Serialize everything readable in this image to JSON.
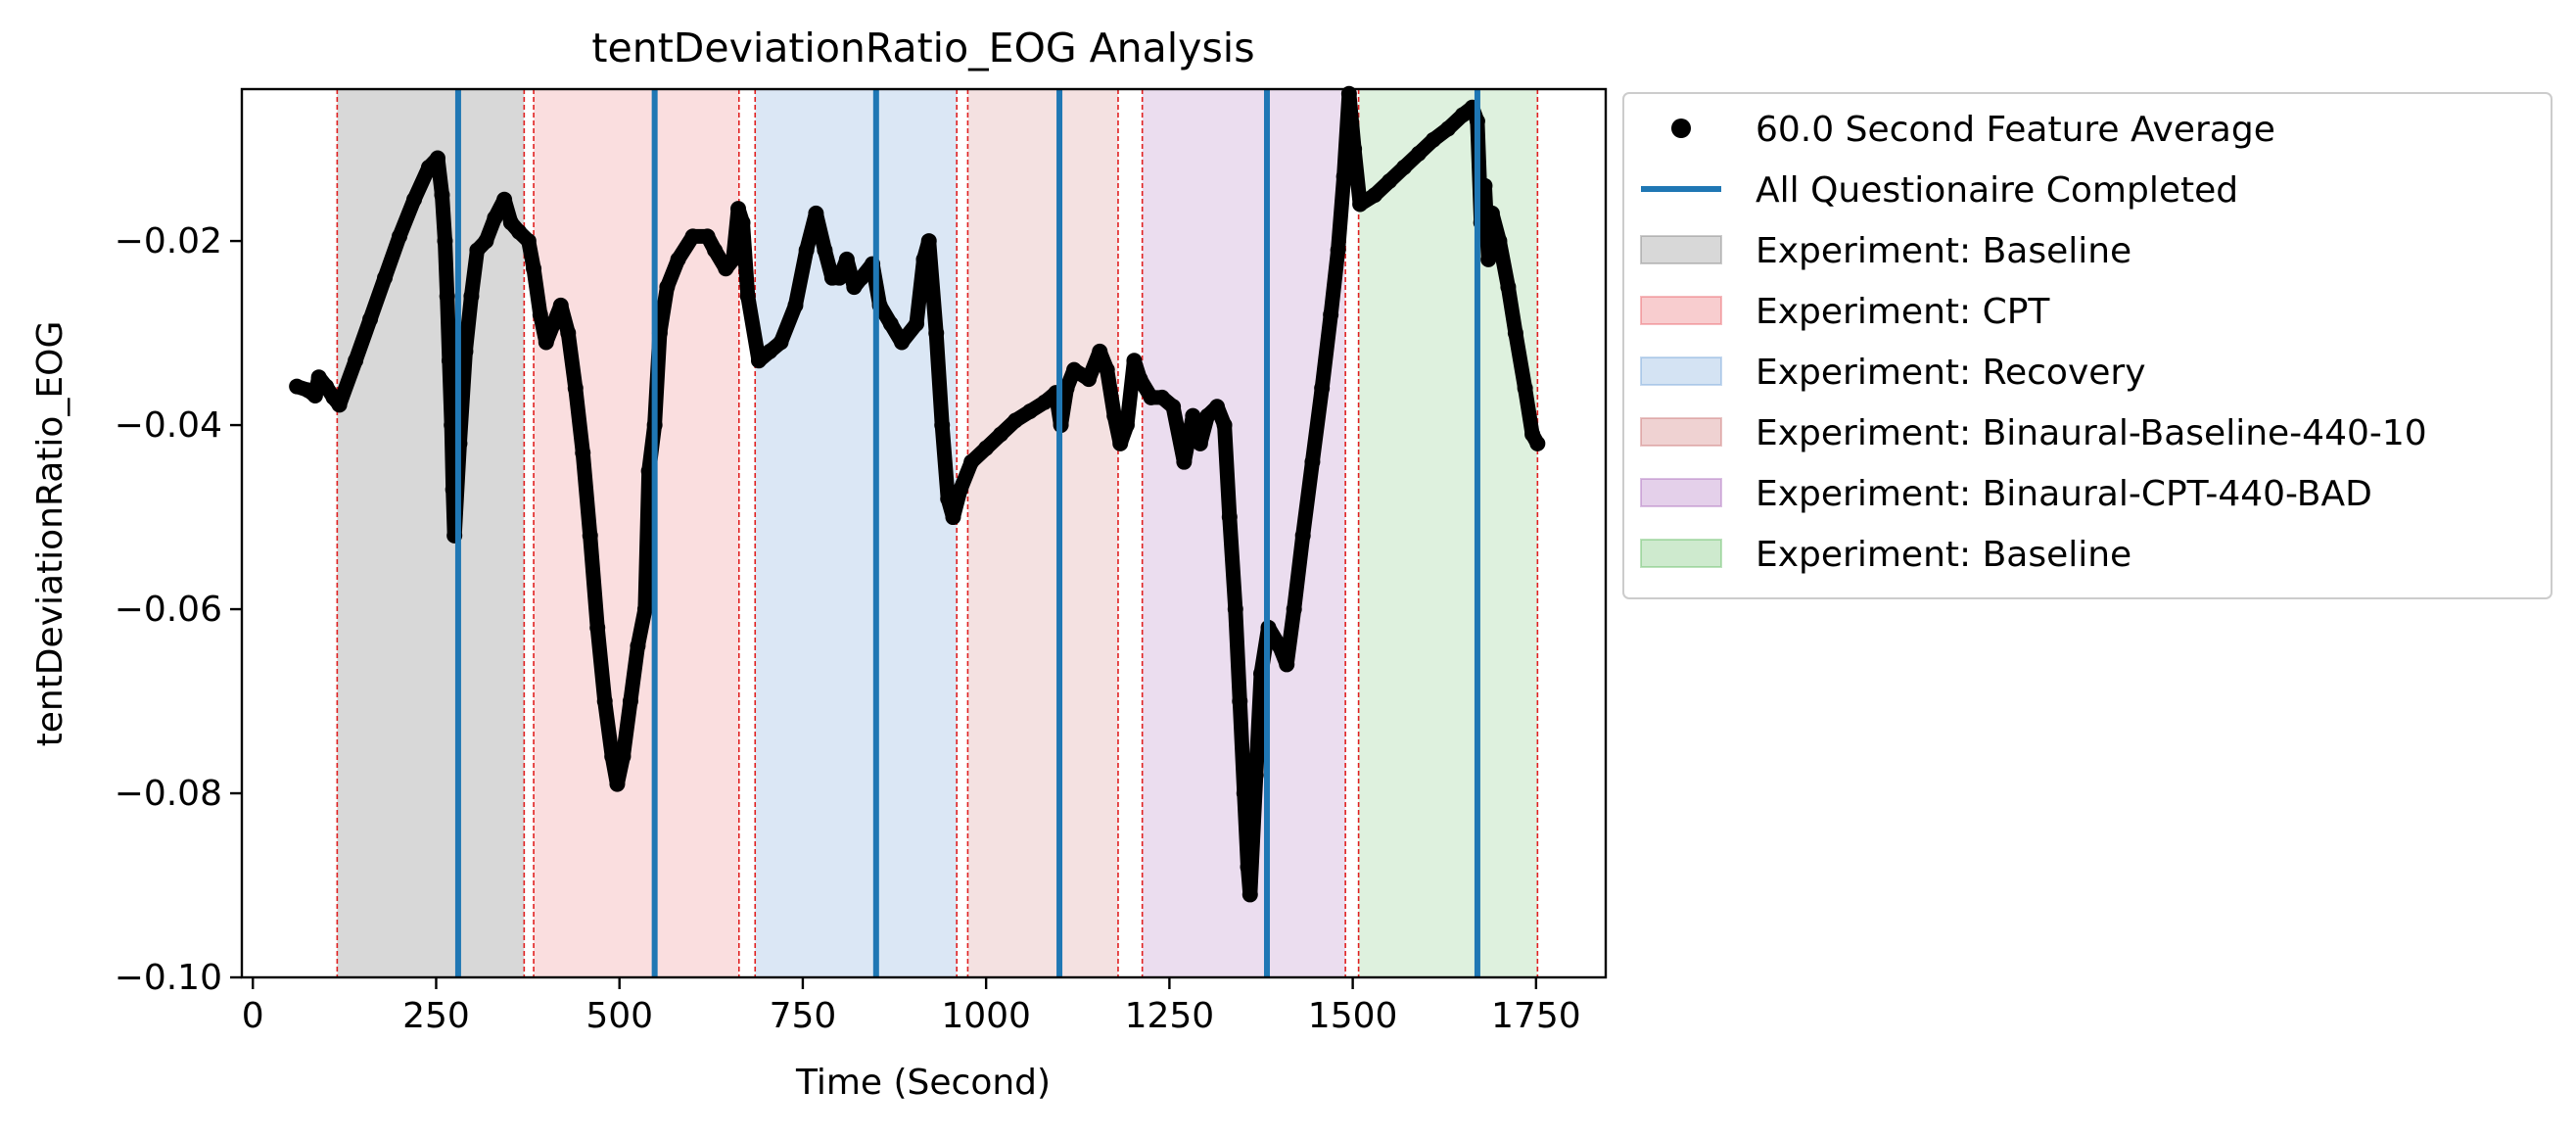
{
  "chart_data": {
    "type": "scatter",
    "title": "tentDeviationRatio_EOG Analysis",
    "xlabel": "Time (Second)",
    "ylabel": "tentDeviationRatio_EOG",
    "xlim": [
      -15,
      1845
    ],
    "ylim": [
      -0.1,
      -0.0035
    ],
    "x_ticks": [
      0,
      250,
      500,
      750,
      1000,
      1250,
      1500,
      1750
    ],
    "x_tick_labels": [
      "0",
      "250",
      "500",
      "750",
      "1000",
      "1250",
      "1500",
      "1750"
    ],
    "y_ticks": [
      -0.1,
      -0.08,
      -0.06,
      -0.04,
      -0.02
    ],
    "y_tick_labels": [
      "−0.10",
      "−0.08",
      "−0.06",
      "−0.04",
      "−0.02"
    ],
    "grid": false,
    "legend_position": "outside right, top",
    "legend": [
      {
        "label": "60.0 Second Feature Average",
        "kind": "marker",
        "color": "#000000"
      },
      {
        "label": "All Questionaire Completed",
        "kind": "line",
        "color": "#1f77b4"
      },
      {
        "label": "Experiment: Baseline",
        "kind": "patch",
        "color": "#7f7f7f"
      },
      {
        "label": "Experiment: CPT",
        "kind": "patch",
        "color": "#e8585f"
      },
      {
        "label": "Experiment: Recovery",
        "kind": "patch",
        "color": "#6fa1d6"
      },
      {
        "label": "Experiment: Binaural-Baseline-440-10",
        "kind": "patch",
        "color": "#c96b6b"
      },
      {
        "label": "Experiment: Binaural-CPT-440-BAD",
        "kind": "patch",
        "color": "#a563b8"
      },
      {
        "label": "Experiment: Baseline",
        "kind": "patch",
        "color": "#5cb85c"
      }
    ],
    "experiment_regions": [
      {
        "label": "Experiment: Baseline",
        "x_start": 115,
        "x_end": 370,
        "color": "#7f7f7f",
        "opacity": 0.3
      },
      {
        "label": "Experiment: CPT",
        "x_start": 383,
        "x_end": 663,
        "color": "#e8585f",
        "opacity": 0.2
      },
      {
        "label": "Experiment: Recovery",
        "x_start": 685,
        "x_end": 960,
        "color": "#6fa1d6",
        "opacity": 0.25
      },
      {
        "label": "Experiment: Binaural-Baseline-440-10",
        "x_start": 975,
        "x_end": 1180,
        "color": "#c96b6b",
        "opacity": 0.2
      },
      {
        "label": "Experiment: Binaural-CPT-440-BAD",
        "x_start": 1213,
        "x_end": 1490,
        "color": "#a563b8",
        "opacity": 0.22
      },
      {
        "label": "Experiment: Baseline",
        "x_start": 1508,
        "x_end": 1752,
        "color": "#5cb85c",
        "opacity": 0.2
      }
    ],
    "boundary_lines": {
      "color": "#e02020",
      "style": "dashed",
      "x": [
        115,
        370,
        383,
        663,
        685,
        960,
        975,
        1180,
        1213,
        1490,
        1508,
        1752
      ]
    },
    "questionnaire_lines": {
      "label": "All Questionaire Completed",
      "color": "#1f77b4",
      "x": [
        280,
        548,
        850,
        1100,
        1383,
        1670
      ]
    },
    "series": [
      {
        "name": "60.0 Second Feature Average",
        "color": "#000000",
        "marker": "circle",
        "points": [
          [
            60,
            -0.0358
          ],
          [
            75,
            -0.0362
          ],
          [
            85,
            -0.0368
          ],
          [
            90,
            -0.0348
          ],
          [
            100,
            -0.0358
          ],
          [
            110,
            -0.037
          ],
          [
            118,
            -0.0378
          ],
          [
            140,
            -0.033
          ],
          [
            160,
            -0.0285
          ],
          [
            180,
            -0.024
          ],
          [
            200,
            -0.0195
          ],
          [
            220,
            -0.0155
          ],
          [
            240,
            -0.012
          ],
          [
            252,
            -0.011
          ],
          [
            258,
            -0.015
          ],
          [
            262,
            -0.02
          ],
          [
            265,
            -0.026
          ],
          [
            268,
            -0.033
          ],
          [
            271,
            -0.04
          ],
          [
            273,
            -0.047
          ],
          [
            275,
            -0.052
          ],
          [
            282,
            -0.042
          ],
          [
            290,
            -0.032
          ],
          [
            298,
            -0.026
          ],
          [
            306,
            -0.021
          ],
          [
            318,
            -0.02
          ],
          [
            330,
            -0.0175
          ],
          [
            343,
            -0.0155
          ],
          [
            352,
            -0.018
          ],
          [
            363,
            -0.019
          ],
          [
            376,
            -0.02
          ],
          [
            383,
            -0.023
          ],
          [
            392,
            -0.028
          ],
          [
            400,
            -0.031
          ],
          [
            410,
            -0.029
          ],
          [
            420,
            -0.027
          ],
          [
            430,
            -0.03
          ],
          [
            440,
            -0.036
          ],
          [
            450,
            -0.043
          ],
          [
            460,
            -0.052
          ],
          [
            470,
            -0.062
          ],
          [
            480,
            -0.07
          ],
          [
            490,
            -0.076
          ],
          [
            497,
            -0.079
          ],
          [
            505,
            -0.076
          ],
          [
            515,
            -0.07
          ],
          [
            525,
            -0.064
          ],
          [
            535,
            -0.06
          ],
          [
            540,
            -0.045
          ],
          [
            548,
            -0.04
          ],
          [
            555,
            -0.03
          ],
          [
            565,
            -0.025
          ],
          [
            580,
            -0.022
          ],
          [
            600,
            -0.0195
          ],
          [
            620,
            -0.0195
          ],
          [
            630,
            -0.021
          ],
          [
            645,
            -0.023
          ],
          [
            655,
            -0.022
          ],
          [
            662,
            -0.0165
          ],
          [
            668,
            -0.018
          ],
          [
            675,
            -0.026
          ],
          [
            690,
            -0.033
          ],
          [
            705,
            -0.032
          ],
          [
            720,
            -0.031
          ],
          [
            740,
            -0.027
          ],
          [
            755,
            -0.021
          ],
          [
            768,
            -0.017
          ],
          [
            780,
            -0.021
          ],
          [
            790,
            -0.024
          ],
          [
            800,
            -0.024
          ],
          [
            810,
            -0.022
          ],
          [
            820,
            -0.025
          ],
          [
            830,
            -0.024
          ],
          [
            845,
            -0.0225
          ],
          [
            855,
            -0.027
          ],
          [
            870,
            -0.029
          ],
          [
            885,
            -0.031
          ],
          [
            905,
            -0.029
          ],
          [
            915,
            -0.022
          ],
          [
            922,
            -0.02
          ],
          [
            932,
            -0.03
          ],
          [
            940,
            -0.04
          ],
          [
            948,
            -0.048
          ],
          [
            955,
            -0.05
          ],
          [
            965,
            -0.047
          ],
          [
            980,
            -0.044
          ],
          [
            1000,
            -0.0425
          ],
          [
            1020,
            -0.041
          ],
          [
            1040,
            -0.0395
          ],
          [
            1060,
            -0.0385
          ],
          [
            1080,
            -0.0375
          ],
          [
            1095,
            -0.0365
          ],
          [
            1102,
            -0.04
          ],
          [
            1110,
            -0.036
          ],
          [
            1120,
            -0.034
          ],
          [
            1140,
            -0.035
          ],
          [
            1155,
            -0.032
          ],
          [
            1165,
            -0.034
          ],
          [
            1175,
            -0.039
          ],
          [
            1183,
            -0.042
          ],
          [
            1192,
            -0.04
          ],
          [
            1202,
            -0.033
          ],
          [
            1210,
            -0.035
          ],
          [
            1225,
            -0.037
          ],
          [
            1240,
            -0.037
          ],
          [
            1255,
            -0.038
          ],
          [
            1270,
            -0.044
          ],
          [
            1282,
            -0.039
          ],
          [
            1292,
            -0.042
          ],
          [
            1302,
            -0.039
          ],
          [
            1315,
            -0.038
          ],
          [
            1325,
            -0.04
          ],
          [
            1332,
            -0.05
          ],
          [
            1340,
            -0.06
          ],
          [
            1346,
            -0.07
          ],
          [
            1352,
            -0.08
          ],
          [
            1357,
            -0.088
          ],
          [
            1360,
            -0.091
          ],
          [
            1368,
            -0.078
          ],
          [
            1375,
            -0.067
          ],
          [
            1385,
            -0.062
          ],
          [
            1400,
            -0.064
          ],
          [
            1410,
            -0.066
          ],
          [
            1420,
            -0.06
          ],
          [
            1432,
            -0.052
          ],
          [
            1445,
            -0.044
          ],
          [
            1458,
            -0.036
          ],
          [
            1470,
            -0.028
          ],
          [
            1480,
            -0.021
          ],
          [
            1488,
            -0.013
          ],
          [
            1495,
            -0.004
          ],
          [
            1502,
            -0.01
          ],
          [
            1510,
            -0.016
          ],
          [
            1530,
            -0.015
          ],
          [
            1550,
            -0.0135
          ],
          [
            1570,
            -0.012
          ],
          [
            1590,
            -0.0105
          ],
          [
            1610,
            -0.009
          ],
          [
            1630,
            -0.0078
          ],
          [
            1650,
            -0.0063
          ],
          [
            1663,
            -0.0055
          ],
          [
            1670,
            -0.007
          ],
          [
            1675,
            -0.018
          ],
          [
            1680,
            -0.014
          ],
          [
            1685,
            -0.022
          ],
          [
            1690,
            -0.017
          ],
          [
            1700,
            -0.02
          ],
          [
            1712,
            -0.025
          ],
          [
            1722,
            -0.03
          ],
          [
            1735,
            -0.036
          ],
          [
            1745,
            -0.041
          ],
          [
            1752,
            -0.042
          ]
        ]
      }
    ]
  }
}
